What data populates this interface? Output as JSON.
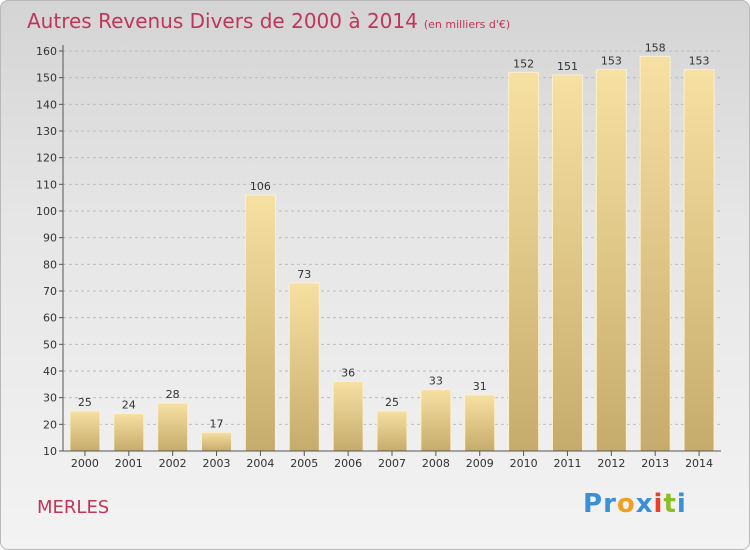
{
  "header": {
    "title": "Autres Revenus Divers de 2000 à 2014",
    "unit": "(en milliers d'€)"
  },
  "footer": {
    "city": "MERLES",
    "logo_text": "Proxiti"
  },
  "colors": {
    "title": "#c1355a",
    "bar_light": "#f6e0a2",
    "bar_dark": "#c6ac6c",
    "grid": "#bdbdbd",
    "axis": "#555555"
  },
  "chart_data": {
    "type": "bar",
    "title": "Autres Revenus Divers de 2000 à 2014",
    "xlabel": "",
    "ylabel": "",
    "categories": [
      "2000",
      "2001",
      "2002",
      "2003",
      "2004",
      "2005",
      "2006",
      "2007",
      "2008",
      "2009",
      "2010",
      "2011",
      "2012",
      "2013",
      "2014"
    ],
    "values": [
      25,
      24,
      28,
      17,
      106,
      73,
      36,
      25,
      33,
      31,
      152,
      151,
      153,
      158,
      153
    ],
    "ylim": [
      10,
      160
    ],
    "yticks": [
      10,
      20,
      30,
      40,
      50,
      60,
      70,
      80,
      90,
      100,
      110,
      120,
      130,
      140,
      150,
      160
    ],
    "grid": true
  }
}
